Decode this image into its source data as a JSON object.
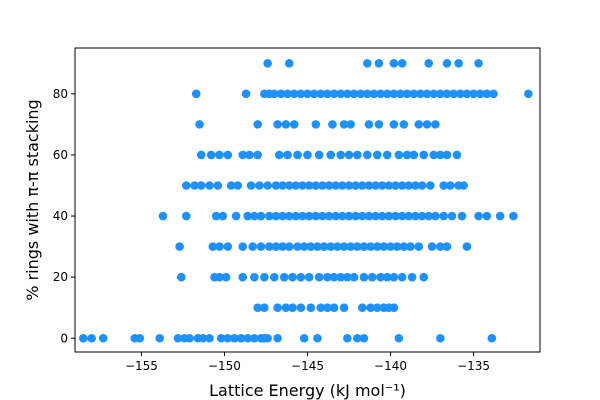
{
  "chart_data": {
    "type": "scatter",
    "title": "",
    "xlabel": "Lattice Energy (kJ mol⁻¹)",
    "ylabel": "% rings with π-π stacking",
    "xlim": [
      -159,
      -131
    ],
    "ylim": [
      -4.5,
      95
    ],
    "x_ticks": [
      -155,
      -150,
      -145,
      -140,
      -135
    ],
    "x_tick_labels": [
      "−155",
      "−150",
      "−145",
      "−140",
      "−135"
    ],
    "y_ticks": [
      0,
      20,
      40,
      60,
      80
    ],
    "y_tick_labels": [
      "0",
      "20",
      "40",
      "60",
      "80"
    ],
    "grid": false,
    "marker_color": "#1e90ff",
    "points": [
      {
        "y": 90,
        "x": [
          -147.4,
          -146.1,
          -141.4,
          -140.7,
          -139.8,
          -139.3,
          -137.7,
          -136.6,
          -135.9,
          -134.7
        ]
      },
      {
        "y": 80,
        "x": [
          -151.7,
          -148.7,
          -147.6,
          -147.3,
          -147.0,
          -146.6,
          -146.2,
          -145.8,
          -145.4,
          -145.0,
          -144.6,
          -144.2,
          -143.8,
          -143.4,
          -143.0,
          -142.6,
          -142.2,
          -141.8,
          -141.4,
          -141.0,
          -140.6,
          -140.2,
          -139.8,
          -139.4,
          -139.0,
          -138.6,
          -138.2,
          -137.8,
          -137.4,
          -137.0,
          -136.6,
          -136.2,
          -135.8,
          -135.4,
          -135.0,
          -134.6,
          -134.2,
          -133.8,
          -131.7
        ]
      },
      {
        "y": 70,
        "x": [
          -151.5,
          -148.0,
          -146.8,
          -146.3,
          -145.8,
          -144.5,
          -143.5,
          -142.8,
          -142.4,
          -141.3,
          -140.7,
          -139.8,
          -139.2,
          -138.3,
          -137.8,
          -137.3
        ]
      },
      {
        "y": 60,
        "x": [
          -151.4,
          -150.8,
          -150.3,
          -149.8,
          -148.9,
          -148.5,
          -148.0,
          -146.7,
          -146.2,
          -145.6,
          -145.0,
          -144.3,
          -143.6,
          -143.0,
          -142.5,
          -142.0,
          -141.4,
          -140.8,
          -140.2,
          -139.5,
          -139.0,
          -138.6,
          -138.0,
          -137.4,
          -137.0,
          -136.6,
          -136.0
        ]
      },
      {
        "y": 50,
        "x": [
          -152.3,
          -151.8,
          -151.4,
          -150.9,
          -150.4,
          -149.6,
          -149.2,
          -148.4,
          -147.9,
          -147.4,
          -146.9,
          -146.5,
          -146.1,
          -145.7,
          -145.3,
          -144.9,
          -144.5,
          -144.1,
          -143.7,
          -143.3,
          -142.9,
          -142.5,
          -142.1,
          -141.7,
          -141.3,
          -140.9,
          -140.5,
          -140.1,
          -139.7,
          -139.3,
          -138.9,
          -138.5,
          -138.1,
          -137.6,
          -136.8,
          -136.4,
          -135.9,
          -135.6
        ]
      },
      {
        "y": 40,
        "x": [
          -153.7,
          -152.3,
          -150.5,
          -150.1,
          -149.3,
          -148.6,
          -148.2,
          -147.8,
          -147.3,
          -146.9,
          -146.5,
          -146.1,
          -145.7,
          -145.3,
          -144.9,
          -144.5,
          -144.1,
          -143.7,
          -143.3,
          -142.9,
          -142.5,
          -142.1,
          -141.7,
          -141.3,
          -140.9,
          -140.5,
          -140.1,
          -139.7,
          -139.3,
          -138.9,
          -138.5,
          -138.1,
          -137.7,
          -137.3,
          -136.8,
          -136.3,
          -135.7,
          -134.7,
          -134.2,
          -133.4,
          -132.6
        ]
      },
      {
        "y": 30,
        "x": [
          -152.7,
          -150.7,
          -150.3,
          -149.8,
          -148.9,
          -148.3,
          -147.8,
          -147.3,
          -146.9,
          -146.5,
          -146.1,
          -145.6,
          -145.2,
          -144.8,
          -144.4,
          -144.0,
          -143.6,
          -143.2,
          -142.8,
          -142.4,
          -142.0,
          -141.6,
          -141.2,
          -140.8,
          -140.4,
          -140.0,
          -139.6,
          -139.2,
          -138.8,
          -138.3,
          -137.5,
          -137.0,
          -136.6,
          -135.4
        ]
      },
      {
        "y": 20,
        "x": [
          -152.6,
          -150.6,
          -150.3,
          -149.9,
          -148.9,
          -148.2,
          -147.6,
          -147.0,
          -146.4,
          -145.9,
          -145.4,
          -144.9,
          -144.3,
          -143.8,
          -143.4,
          -143.0,
          -142.6,
          -142.2,
          -141.6,
          -141.1,
          -140.6,
          -140.2,
          -139.8,
          -139.3,
          -138.7,
          -138.0
        ]
      },
      {
        "y": 10,
        "x": [
          -148.0,
          -147.6,
          -146.8,
          -146.3,
          -145.9,
          -145.4,
          -144.8,
          -144.2,
          -143.8,
          -143.4,
          -142.8,
          -141.7,
          -141.2,
          -140.8,
          -140.4,
          -140.1,
          -139.8
        ]
      },
      {
        "y": 0,
        "x": [
          -158.5,
          -158.0,
          -157.3,
          -155.4,
          -155.1,
          -153.9,
          -152.8,
          -152.4,
          -152.1,
          -151.6,
          -151.3,
          -150.9,
          -150.2,
          -149.8,
          -149.4,
          -149.0,
          -148.6,
          -148.2,
          -147.8,
          -147.6,
          -147.4,
          -146.8,
          -145.2,
          -144.4,
          -142.6,
          -142.0,
          -141.6,
          -139.5,
          -137.0,
          -133.9
        ]
      }
    ]
  }
}
